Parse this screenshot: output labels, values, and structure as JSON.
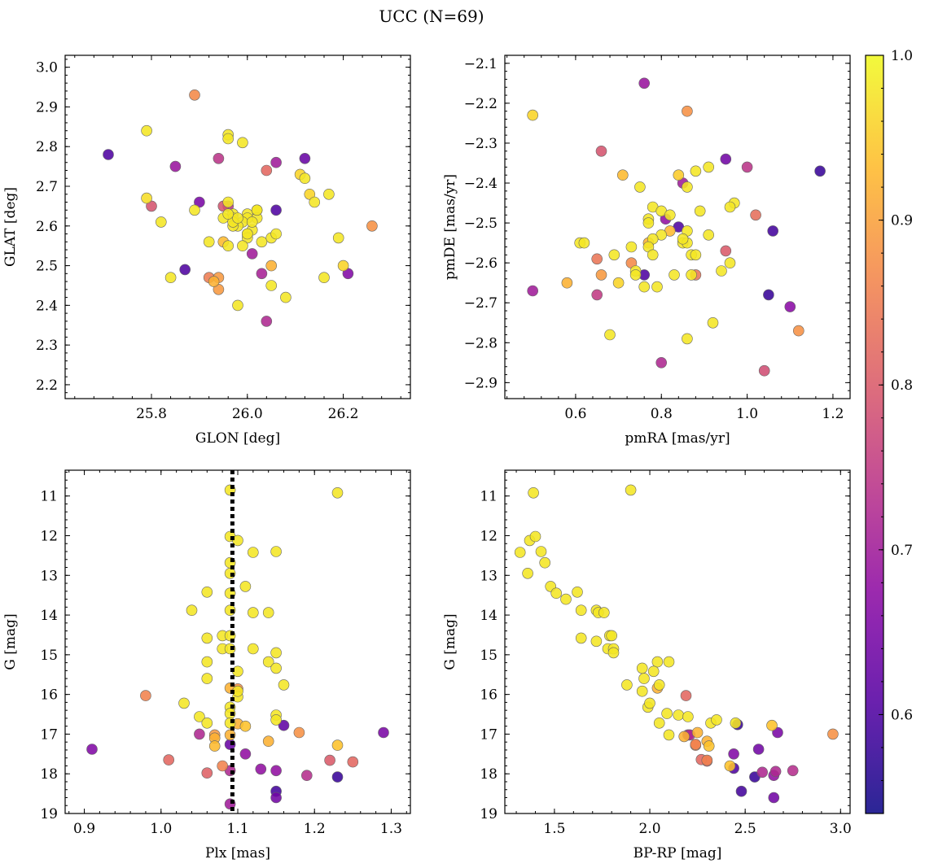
{
  "figure": {
    "title": "UCC (N=69)"
  },
  "colorbar": {
    "min": 0.54,
    "max": 1.0,
    "ticks": [
      0.6,
      0.7,
      0.8,
      0.9,
      1.0
    ],
    "tick_labels": [
      "0.6",
      "0.7",
      "0.8",
      "0.9",
      "1.0"
    ],
    "colormap": "plasma"
  },
  "chart_data": [
    {
      "type": "scatter",
      "xlabel": "GLON [deg]",
      "ylabel": "GLAT [deg]",
      "xlim": [
        25.62,
        26.34
      ],
      "ylim": [
        2.165,
        3.03
      ],
      "y_inverted": false,
      "xticks": [
        25.8,
        26.0,
        26.2
      ],
      "xtick_labels": [
        "25.8",
        "26.0",
        "26.2"
      ],
      "yticks": [
        2.2,
        2.3,
        2.4,
        2.5,
        2.6,
        2.7,
        2.8,
        2.9,
        3.0
      ],
      "ytick_labels": [
        "2.2",
        "2.3",
        "2.4",
        "2.5",
        "2.6",
        "2.7",
        "2.8",
        "2.9",
        "3.0"
      ],
      "x": [
        25.89,
        25.79,
        25.96,
        25.96,
        25.99,
        26.12,
        25.71,
        25.85,
        25.94,
        26.06,
        26.04,
        26.11,
        26.12,
        26.13,
        26.17,
        25.79,
        25.8,
        25.9,
        25.96,
        26.14,
        25.82,
        25.96,
        25.97,
        25.97,
        26.02,
        25.95,
        25.89,
        26.0,
        26.02,
        26.0,
        25.99,
        25.98,
        26.01,
        25.97,
        26.0,
        26.02,
        26.06,
        26.26,
        26.0,
        25.92,
        25.96,
        25.95,
        25.99,
        26.03,
        26.19,
        26.01,
        26.05,
        26.2,
        25.87,
        25.94,
        25.84,
        25.92,
        25.94,
        25.93,
        26.03,
        26.16,
        26.21,
        26.05,
        26.08,
        25.98,
        26.05,
        26.04,
        25.97,
        26.0,
        25.98,
        25.95,
        26.01,
        26.06,
        25.96
      ],
      "y": [
        2.93,
        2.84,
        2.83,
        2.82,
        2.81,
        2.77,
        2.78,
        2.75,
        2.77,
        2.76,
        2.74,
        2.73,
        2.72,
        2.68,
        2.68,
        2.67,
        2.65,
        2.66,
        2.66,
        2.66,
        2.61,
        2.65,
        2.63,
        2.62,
        2.64,
        2.62,
        2.64,
        2.63,
        2.62,
        2.62,
        2.61,
        2.6,
        2.59,
        2.6,
        2.58,
        2.64,
        2.64,
        2.6,
        2.57,
        2.56,
        2.55,
        2.56,
        2.55,
        2.56,
        2.57,
        2.53,
        2.57,
        2.5,
        2.49,
        2.47,
        2.47,
        2.47,
        2.44,
        2.46,
        2.48,
        2.47,
        2.48,
        2.5,
        2.42,
        2.4,
        2.45,
        2.36,
        2.61,
        2.58,
        2.62,
        2.65,
        2.61,
        2.58,
        2.63
      ],
      "c": [
        0.87,
        0.98,
        0.98,
        0.98,
        0.98,
        0.63,
        0.6,
        0.69,
        0.74,
        0.7,
        0.82,
        0.96,
        0.98,
        0.96,
        0.98,
        0.97,
        0.79,
        0.65,
        0.98,
        0.98,
        0.98,
        0.74,
        0.98,
        0.98,
        0.98,
        0.98,
        0.98,
        0.98,
        0.98,
        0.98,
        0.98,
        0.98,
        0.98,
        0.98,
        0.98,
        0.98,
        0.6,
        0.88,
        0.98,
        0.98,
        0.98,
        0.93,
        0.98,
        0.98,
        0.98,
        0.7,
        0.98,
        0.96,
        0.6,
        0.89,
        0.98,
        0.85,
        0.89,
        0.92,
        0.71,
        0.98,
        0.66,
        0.92,
        0.98,
        0.98,
        0.98,
        0.72,
        0.98,
        0.98,
        0.98,
        0.79,
        0.98,
        0.98,
        0.98
      ]
    },
    {
      "type": "scatter",
      "xlabel": "pmRA [mas/yr]",
      "ylabel": "pmDE [mas/yr]",
      "xlim": [
        0.435,
        1.24
      ],
      "ylim": [
        -2.94,
        -2.08
      ],
      "y_inverted": false,
      "xticks": [
        0.6,
        0.8,
        1.0,
        1.2
      ],
      "xtick_labels": [
        "0.6",
        "0.8",
        "1.0",
        "1.2"
      ],
      "yticks": [
        -2.9,
        -2.8,
        -2.7,
        -2.6,
        -2.5,
        -2.4,
        -2.3,
        -2.2,
        -2.1
      ],
      "ytick_labels": [
        "−2.9",
        "−2.8",
        "−2.7",
        "−2.6",
        "−2.5",
        "−2.4",
        "−2.3",
        "−2.2",
        "−2.1"
      ],
      "x": [
        0.76,
        0.86,
        0.5,
        0.66,
        0.95,
        1.0,
        1.17,
        0.91,
        0.88,
        0.71,
        0.84,
        0.85,
        0.86,
        0.75,
        0.97,
        0.89,
        0.96,
        0.78,
        0.8,
        0.77,
        1.02,
        0.77,
        0.82,
        0.81,
        0.84,
        0.86,
        0.87,
        0.91,
        0.88,
        1.06,
        0.8,
        0.78,
        0.85,
        0.61,
        0.62,
        0.77,
        0.78,
        0.86,
        0.69,
        0.73,
        0.77,
        0.95,
        0.96,
        0.94,
        0.65,
        0.73,
        0.58,
        0.66,
        0.7,
        0.74,
        0.76,
        0.79,
        0.83,
        0.87,
        0.92,
        0.68,
        0.86,
        0.65,
        0.5,
        1.05,
        1.1,
        1.12,
        0.8,
        1.04,
        0.88,
        0.74,
        0.76,
        0.85,
        0.82
      ],
      "y": [
        -2.15,
        -2.22,
        -2.23,
        -2.32,
        -2.34,
        -2.36,
        -2.37,
        -2.36,
        -2.37,
        -2.38,
        -2.38,
        -2.4,
        -2.41,
        -2.41,
        -2.45,
        -2.47,
        -2.46,
        -2.46,
        -2.47,
        -2.49,
        -2.48,
        -2.5,
        -2.52,
        -2.49,
        -2.51,
        -2.52,
        -2.58,
        -2.53,
        -2.58,
        -2.52,
        -2.53,
        -2.54,
        -2.55,
        -2.55,
        -2.55,
        -2.56,
        -2.58,
        -2.55,
        -2.58,
        -2.56,
        -2.55,
        -2.57,
        -2.6,
        -2.62,
        -2.59,
        -2.6,
        -2.65,
        -2.63,
        -2.65,
        -2.62,
        -2.63,
        -2.66,
        -2.63,
        -2.63,
        -2.75,
        -2.78,
        -2.79,
        -2.68,
        -2.67,
        -2.68,
        -2.71,
        -2.77,
        -2.85,
        -2.87,
        -2.63,
        -2.63,
        -2.66,
        -2.54,
        -2.48
      ],
      "c": [
        0.69,
        0.88,
        0.96,
        0.79,
        0.64,
        0.74,
        0.58,
        0.98,
        0.98,
        0.93,
        0.95,
        0.7,
        0.98,
        0.98,
        0.98,
        0.98,
        0.98,
        0.98,
        0.98,
        0.98,
        0.83,
        0.98,
        0.93,
        0.68,
        0.6,
        0.98,
        0.98,
        0.98,
        0.98,
        0.59,
        0.98,
        0.98,
        0.98,
        0.98,
        0.98,
        0.98,
        0.98,
        0.98,
        0.98,
        0.98,
        0.92,
        0.8,
        0.98,
        0.98,
        0.84,
        0.87,
        0.92,
        0.89,
        0.96,
        0.98,
        0.6,
        0.98,
        0.98,
        0.98,
        0.98,
        0.98,
        0.98,
        0.75,
        0.7,
        0.58,
        0.67,
        0.88,
        0.72,
        0.78,
        0.84,
        0.98,
        0.98,
        0.98,
        0.98
      ]
    },
    {
      "type": "scatter",
      "xlabel": "Plx [mas]",
      "ylabel": "G [mag]",
      "xlim": [
        0.875,
        1.325
      ],
      "ylim": [
        10.35,
        19.0
      ],
      "y_inverted": true,
      "xticks": [
        0.9,
        1.0,
        1.1,
        1.2,
        1.3
      ],
      "xtick_labels": [
        "0.9",
        "1.0",
        "1.1",
        "1.2",
        "1.3"
      ],
      "yticks": [
        11,
        12,
        13,
        14,
        15,
        16,
        17,
        18,
        19
      ],
      "ytick_labels": [
        "11",
        "12",
        "13",
        "14",
        "15",
        "16",
        "17",
        "18",
        "19"
      ],
      "vline": 1.093,
      "x": [
        1.09,
        1.23,
        1.09,
        1.1,
        1.12,
        1.15,
        1.09,
        1.09,
        1.11,
        1.06,
        1.09,
        1.04,
        1.09,
        1.12,
        1.14,
        1.08,
        1.09,
        1.06,
        1.15,
        1.08,
        1.09,
        1.12,
        1.14,
        1.15,
        1.06,
        1.1,
        1.06,
        1.16,
        1.1,
        1.09,
        0.98,
        1.03,
        1.1,
        1.09,
        1.09,
        1.05,
        1.15,
        1.15,
        1.06,
        1.09,
        1.1,
        1.16,
        1.29,
        1.18,
        1.07,
        1.05,
        1.09,
        1.14,
        1.07,
        1.09,
        1.23,
        1.11,
        0.91,
        1.01,
        1.25,
        1.22,
        1.08,
        1.13,
        1.15,
        1.06,
        1.09,
        1.19,
        1.23,
        1.15,
        1.15,
        1.09,
        1.07,
        1.11,
        1.1
      ],
      "y": [
        10.85,
        10.92,
        12.02,
        12.12,
        12.42,
        12.4,
        12.68,
        12.95,
        13.28,
        13.42,
        13.45,
        13.88,
        13.88,
        13.94,
        13.94,
        14.52,
        14.52,
        14.58,
        14.95,
        14.85,
        14.85,
        14.85,
        15.18,
        15.34,
        15.18,
        15.42,
        15.6,
        15.76,
        16.06,
        16.32,
        16.03,
        16.22,
        15.86,
        16.48,
        15.84,
        16.56,
        16.52,
        16.64,
        16.72,
        16.72,
        16.74,
        16.78,
        16.96,
        16.96,
        17.02,
        17.0,
        17.02,
        17.18,
        17.3,
        17.26,
        17.28,
        17.5,
        17.38,
        17.65,
        17.7,
        17.66,
        17.8,
        17.88,
        17.92,
        17.98,
        17.92,
        18.04,
        18.08,
        18.44,
        18.6,
        18.76,
        17.1,
        16.8,
        15.92
      ],
      "c": [
        0.98,
        0.98,
        0.98,
        0.98,
        0.98,
        0.98,
        0.98,
        0.98,
        0.98,
        0.98,
        0.98,
        0.98,
        0.98,
        0.98,
        0.98,
        0.98,
        0.98,
        0.98,
        0.98,
        0.98,
        0.98,
        0.98,
        0.98,
        0.98,
        0.98,
        0.98,
        0.98,
        0.98,
        0.98,
        0.98,
        0.86,
        0.98,
        0.88,
        0.98,
        0.92,
        0.98,
        0.98,
        0.98,
        0.98,
        0.98,
        0.92,
        0.62,
        0.65,
        0.88,
        0.89,
        0.72,
        0.92,
        0.92,
        0.93,
        0.63,
        0.94,
        0.68,
        0.66,
        0.82,
        0.82,
        0.8,
        0.86,
        0.68,
        0.68,
        0.81,
        0.72,
        0.73,
        0.58,
        0.59,
        0.64,
        0.7,
        0.92,
        0.94,
        0.98
      ]
    },
    {
      "type": "scatter",
      "xlabel": "BP-RP [mag]",
      "ylabel": "G [mag]",
      "xlim": [
        1.24,
        3.05
      ],
      "ylim": [
        10.35,
        19.0
      ],
      "y_inverted": true,
      "xticks": [
        1.5,
        2.0,
        2.5,
        3.0
      ],
      "xtick_labels": [
        "1.5",
        "2.0",
        "2.5",
        "3.0"
      ],
      "yticks": [
        11,
        12,
        13,
        14,
        15,
        16,
        17,
        18,
        19
      ],
      "ytick_labels": [
        "11",
        "12",
        "13",
        "14",
        "15",
        "16",
        "17",
        "18",
        "19"
      ],
      "x": [
        1.9,
        1.39,
        1.37,
        1.4,
        1.32,
        1.43,
        1.45,
        1.36,
        1.48,
        1.51,
        1.56,
        1.62,
        1.64,
        1.72,
        1.73,
        1.76,
        1.79,
        1.8,
        1.64,
        1.72,
        1.78,
        1.81,
        1.81,
        1.96,
        2.04,
        2.1,
        2.02,
        1.97,
        2.05,
        1.88,
        1.96,
        2.04,
        1.99,
        2.0,
        2.19,
        2.09,
        2.15,
        2.2,
        2.32,
        2.35,
        2.45,
        2.46,
        2.57,
        2.64,
        2.67,
        2.96,
        2.05,
        2.1,
        2.21,
        2.3,
        2.25,
        2.3,
        2.31,
        2.18,
        2.24,
        2.2,
        2.24,
        2.27,
        2.3,
        2.44,
        2.42,
        2.44,
        2.59,
        2.66,
        2.65,
        2.75,
        2.48,
        2.55,
        2.65
      ],
      "y": [
        10.85,
        10.92,
        12.12,
        12.02,
        12.42,
        12.4,
        12.68,
        12.95,
        13.28,
        13.45,
        13.6,
        13.42,
        13.88,
        13.88,
        13.94,
        13.94,
        14.52,
        14.52,
        14.58,
        14.66,
        14.85,
        14.85,
        14.95,
        15.34,
        15.18,
        15.18,
        15.42,
        15.6,
        15.76,
        15.76,
        15.92,
        15.84,
        16.32,
        16.22,
        16.03,
        16.48,
        16.52,
        16.56,
        16.72,
        16.64,
        16.72,
        16.76,
        17.38,
        16.78,
        16.96,
        17.0,
        16.72,
        17.02,
        17.02,
        17.18,
        16.96,
        17.66,
        17.3,
        17.06,
        17.28,
        17.02,
        17.26,
        17.64,
        17.68,
        17.5,
        17.8,
        17.86,
        17.96,
        17.94,
        18.04,
        17.92,
        18.44,
        18.08,
        18.6
      ],
      "c": [
        0.98,
        0.98,
        0.98,
        0.98,
        0.98,
        0.98,
        0.98,
        0.98,
        0.98,
        0.98,
        0.98,
        0.98,
        0.98,
        0.98,
        0.98,
        0.98,
        0.98,
        0.98,
        0.98,
        0.98,
        0.98,
        0.98,
        0.98,
        0.98,
        0.98,
        0.98,
        0.98,
        0.98,
        0.98,
        0.98,
        0.98,
        0.92,
        0.98,
        0.98,
        0.82,
        0.98,
        0.98,
        0.98,
        0.98,
        0.98,
        0.98,
        0.58,
        0.64,
        0.94,
        0.65,
        0.88,
        0.98,
        0.98,
        0.72,
        0.92,
        0.92,
        0.86,
        0.94,
        0.92,
        0.86,
        0.7,
        0.86,
        0.82,
        0.8,
        0.66,
        0.94,
        0.6,
        0.72,
        0.72,
        0.68,
        0.73,
        0.59,
        0.58,
        0.64
      ]
    }
  ]
}
